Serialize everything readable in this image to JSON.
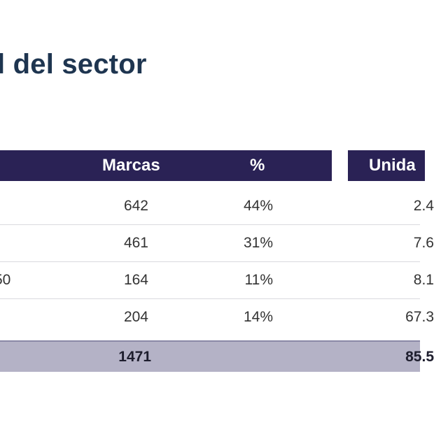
{
  "title": "l del sector",
  "headers": {
    "marcas": "Marcas",
    "pct": "%",
    "units": "Unida"
  },
  "rows": [
    {
      "first": "",
      "marcas": "642",
      "pct": "44%",
      "units": "2.4"
    },
    {
      "first": "",
      "marcas": "461",
      "pct": "31%",
      "units": "7.6"
    },
    {
      "first": "50",
      "marcas": "164",
      "pct": "11%",
      "units": "8.1"
    },
    {
      "first": ")",
      "marcas": "204",
      "pct": "14%",
      "units": "67.3"
    }
  ],
  "total": {
    "marcas": "1471",
    "units": "85.5"
  }
}
